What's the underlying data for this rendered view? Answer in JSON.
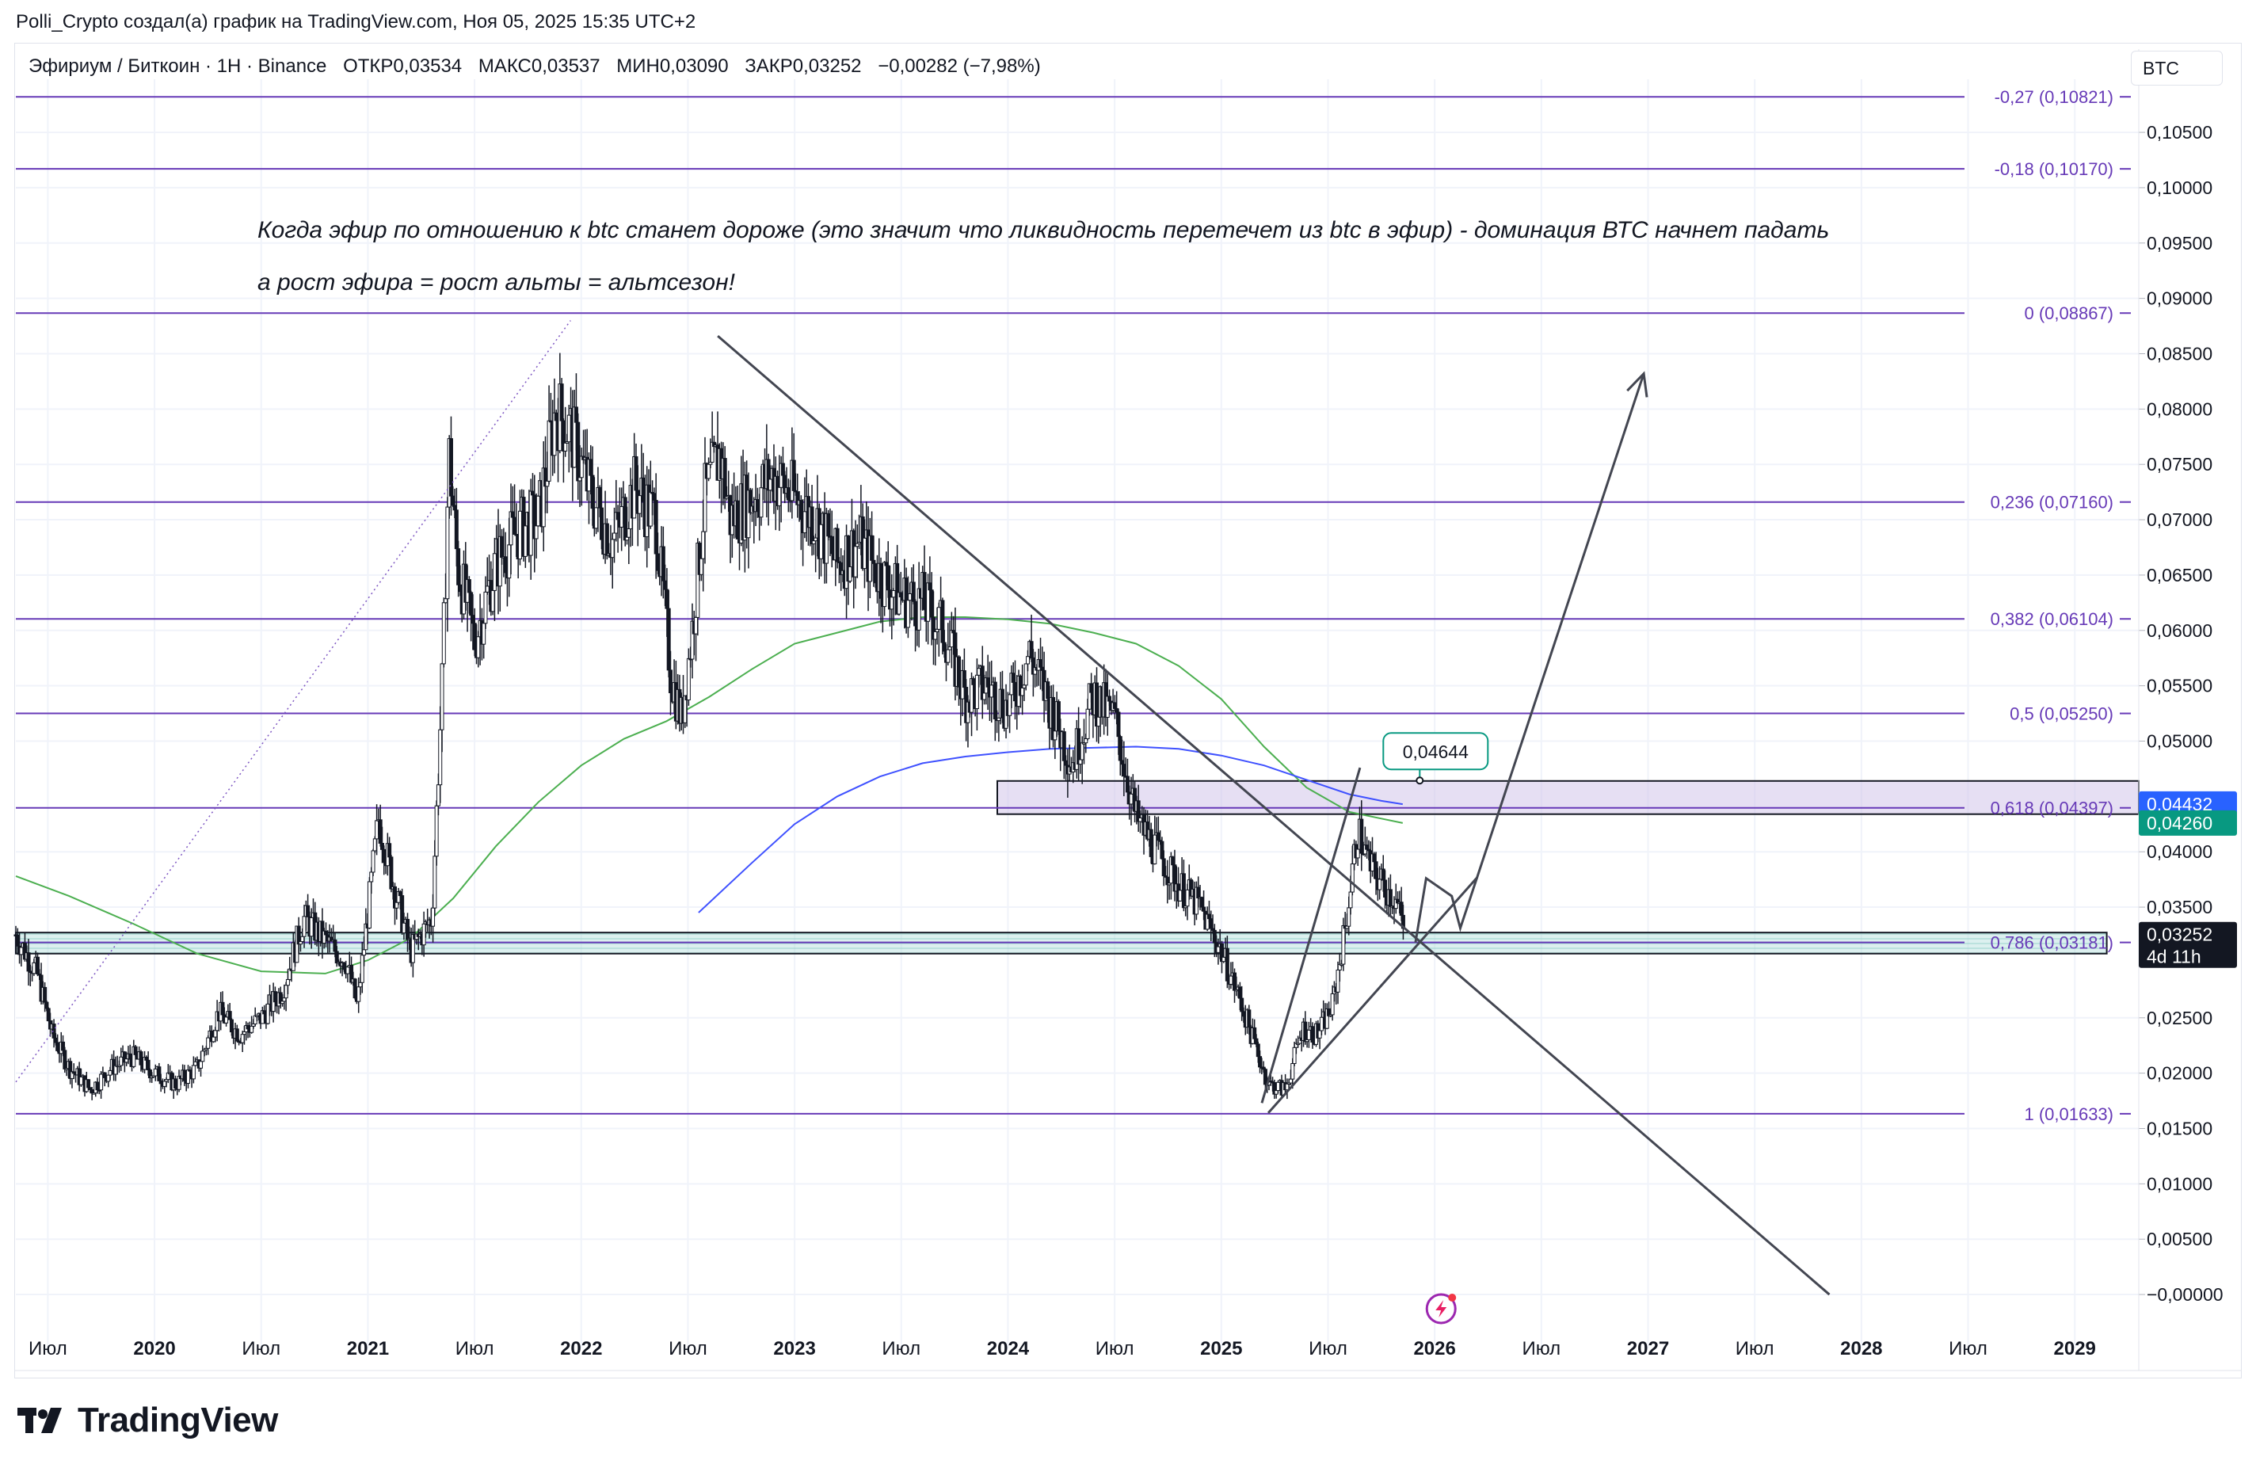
{
  "header": {
    "caption": "Polli_Crypto создал(а) график на TradingView.com, Ноя 05, 2025 15:35 UTC+2"
  },
  "symbol": {
    "name": "Эфириум / Биткоин · 1H · Binance",
    "open": "ОТКР0,03534",
    "high": "МАКС0,03537",
    "low": "МИН0,03090",
    "close": "ЗАКР0,03252",
    "change": "−0,00282 (−7,98%)"
  },
  "currency": "BTC",
  "logo_text": "TradingView",
  "colors": {
    "fib_line": "#673ab7",
    "trend_line": "#434651",
    "ma_green": "#4caf50",
    "ma_blue": "#3f51ff",
    "candle": "#131722",
    "zone_purple": "#d1c4e9",
    "zone_teal": "#b2dfdb",
    "badge_blue": "#2962ff",
    "badge_green": "#089981",
    "badge_dark": "#131722"
  },
  "chart_data": {
    "type": "candlestick",
    "ylim": [
      -0.002,
      0.1098
    ],
    "y_ticks": [
      {
        "value": 0.105,
        "label": "0,10500"
      },
      {
        "value": 0.1,
        "label": "0,10000"
      },
      {
        "value": 0.095,
        "label": "0,09500"
      },
      {
        "value": 0.09,
        "label": "0,09000"
      },
      {
        "value": 0.085,
        "label": "0,08500"
      },
      {
        "value": 0.08,
        "label": "0,08000"
      },
      {
        "value": 0.075,
        "label": "0,07500"
      },
      {
        "value": 0.07,
        "label": "0,07000"
      },
      {
        "value": 0.065,
        "label": "0,06500"
      },
      {
        "value": 0.06,
        "label": "0,06000"
      },
      {
        "value": 0.055,
        "label": "0,05500"
      },
      {
        "value": 0.05,
        "label": "0,05000"
      },
      {
        "value": 0.04,
        "label": "0,04000"
      },
      {
        "value": 0.035,
        "label": "0,03500"
      },
      {
        "value": 0.025,
        "label": "0,02500"
      },
      {
        "value": 0.02,
        "label": "0,02000"
      },
      {
        "value": 0.015,
        "label": "0,01500"
      },
      {
        "value": 0.01,
        "label": "0,01000"
      },
      {
        "value": 0.005,
        "label": "0,00500"
      },
      {
        "value": 0.0,
        "label": "−0,00000"
      }
    ],
    "x_ticks": [
      {
        "t": 2019.5,
        "label": "Июл",
        "bold": false
      },
      {
        "t": 2020.0,
        "label": "2020",
        "bold": true
      },
      {
        "t": 2020.5,
        "label": "Июл",
        "bold": false
      },
      {
        "t": 2021.0,
        "label": "2021",
        "bold": true
      },
      {
        "t": 2021.5,
        "label": "Июл",
        "bold": false
      },
      {
        "t": 2022.0,
        "label": "2022",
        "bold": true
      },
      {
        "t": 2022.5,
        "label": "Июл",
        "bold": false
      },
      {
        "t": 2023.0,
        "label": "2023",
        "bold": true
      },
      {
        "t": 2023.5,
        "label": "Июл",
        "bold": false
      },
      {
        "t": 2024.0,
        "label": "2024",
        "bold": true
      },
      {
        "t": 2024.5,
        "label": "Июл",
        "bold": false
      },
      {
        "t": 2025.0,
        "label": "2025",
        "bold": true
      },
      {
        "t": 2025.5,
        "label": "Июл",
        "bold": false
      },
      {
        "t": 2026.0,
        "label": "2026",
        "bold": true
      },
      {
        "t": 2026.5,
        "label": "Июл",
        "bold": false
      },
      {
        "t": 2027.0,
        "label": "2027",
        "bold": true
      },
      {
        "t": 2027.5,
        "label": "Июл",
        "bold": false
      },
      {
        "t": 2028.0,
        "label": "2028",
        "bold": true
      },
      {
        "t": 2028.5,
        "label": "Июл",
        "bold": false
      },
      {
        "t": 2029.0,
        "label": "2029",
        "bold": true
      }
    ],
    "fib_levels": [
      {
        "value": 0.10821,
        "label": "-0,27 (0,10821)"
      },
      {
        "value": 0.1017,
        "label": "-0,18 (0,10170)"
      },
      {
        "value": 0.08867,
        "label": "0 (0,08867)"
      },
      {
        "value": 0.0716,
        "label": "0,236 (0,07160)"
      },
      {
        "value": 0.06104,
        "label": "0,382 (0,06104)"
      },
      {
        "value": 0.0525,
        "label": "0,5 (0,05250)"
      },
      {
        "value": 0.04397,
        "label": "0,618 (0,04397)"
      },
      {
        "value": 0.03181,
        "label": "0,786 (0,03181)"
      },
      {
        "value": 0.01633,
        "label": "1 (0,01633)"
      }
    ],
    "price_badges": [
      {
        "value": 0.04432,
        "label": "0,04432",
        "color": "#2962ff"
      },
      {
        "value": 0.0426,
        "label": "0,04260",
        "color": "#089981"
      },
      {
        "value": 0.03252,
        "label": "0,03252",
        "sub": "4d 11h",
        "color": "#131722"
      }
    ],
    "annotation_lines": [
      "Когда эфир по отношению к btc станет дороже  (это значит что ликвидность перетечет из btc в эфир) - доминация ВТС начнет падать",
      "а рост эфира = рост альты = альтсезон!"
    ],
    "callout": {
      "label": "0,04644",
      "t": 2025.93,
      "value": 0.04644
    },
    "zones": [
      {
        "t0": 2023.95,
        "t1": 2029.3,
        "y0": 0.0434,
        "y1": 0.0464,
        "color": "purple"
      },
      {
        "t0": 2019.35,
        "t1": 2029.15,
        "y0": 0.0308,
        "y1": 0.0327,
        "color": "teal"
      }
    ],
    "trend_lines": [
      {
        "t0": 2022.64,
        "v0": 0.0866,
        "t1": 2027.85,
        "v1": 0.0
      },
      {
        "t0": 2025.22,
        "v0": 0.0164,
        "t1": 2026.2,
        "v1": 0.0377
      },
      {
        "t0": 2025.19,
        "v0": 0.0173,
        "t1": 2025.65,
        "v1": 0.0476
      }
    ],
    "forecast_path": [
      {
        "t": 2025.91,
        "v": 0.0318
      },
      {
        "t": 2025.96,
        "v": 0.0376
      },
      {
        "t": 2026.08,
        "v": 0.036
      },
      {
        "t": 2026.12,
        "v": 0.0331
      },
      {
        "t": 2026.98,
        "v": 0.0832
      }
    ],
    "dotted_line": {
      "t0": 2019.35,
      "v0": 0.0192,
      "t1": 2021.95,
      "v1": 0.088
    },
    "ma_green": [
      {
        "t": 2019.35,
        "v": 0.0378
      },
      {
        "t": 2019.6,
        "v": 0.036
      },
      {
        "t": 2019.9,
        "v": 0.0335
      },
      {
        "t": 2020.2,
        "v": 0.0308
      },
      {
        "t": 2020.5,
        "v": 0.0292
      },
      {
        "t": 2020.8,
        "v": 0.029
      },
      {
        "t": 2021.0,
        "v": 0.0302
      },
      {
        "t": 2021.2,
        "v": 0.0322
      },
      {
        "t": 2021.4,
        "v": 0.0358
      },
      {
        "t": 2021.6,
        "v": 0.0405
      },
      {
        "t": 2021.8,
        "v": 0.0445
      },
      {
        "t": 2022.0,
        "v": 0.0478
      },
      {
        "t": 2022.2,
        "v": 0.0502
      },
      {
        "t": 2022.4,
        "v": 0.0518
      },
      {
        "t": 2022.6,
        "v": 0.054
      },
      {
        "t": 2022.8,
        "v": 0.0565
      },
      {
        "t": 2023.0,
        "v": 0.0588
      },
      {
        "t": 2023.2,
        "v": 0.0598
      },
      {
        "t": 2023.4,
        "v": 0.0608
      },
      {
        "t": 2023.6,
        "v": 0.0612
      },
      {
        "t": 2023.8,
        "v": 0.0612
      },
      {
        "t": 2024.0,
        "v": 0.061
      },
      {
        "t": 2024.2,
        "v": 0.0606
      },
      {
        "t": 2024.4,
        "v": 0.0598
      },
      {
        "t": 2024.6,
        "v": 0.0588
      },
      {
        "t": 2024.8,
        "v": 0.0568
      },
      {
        "t": 2025.0,
        "v": 0.0538
      },
      {
        "t": 2025.2,
        "v": 0.0495
      },
      {
        "t": 2025.4,
        "v": 0.0458
      },
      {
        "t": 2025.6,
        "v": 0.0436
      },
      {
        "t": 2025.75,
        "v": 0.043
      },
      {
        "t": 2025.85,
        "v": 0.0426
      }
    ],
    "ma_blue": [
      {
        "t": 2022.55,
        "v": 0.0345
      },
      {
        "t": 2022.8,
        "v": 0.039
      },
      {
        "t": 2023.0,
        "v": 0.0425
      },
      {
        "t": 2023.2,
        "v": 0.045
      },
      {
        "t": 2023.4,
        "v": 0.0468
      },
      {
        "t": 2023.6,
        "v": 0.048
      },
      {
        "t": 2023.8,
        "v": 0.0486
      },
      {
        "t": 2024.0,
        "v": 0.049
      },
      {
        "t": 2024.2,
        "v": 0.0493
      },
      {
        "t": 2024.4,
        "v": 0.0494
      },
      {
        "t": 2024.6,
        "v": 0.0495
      },
      {
        "t": 2024.8,
        "v": 0.0493
      },
      {
        "t": 2025.0,
        "v": 0.0487
      },
      {
        "t": 2025.2,
        "v": 0.0478
      },
      {
        "t": 2025.4,
        "v": 0.0465
      },
      {
        "t": 2025.6,
        "v": 0.0452
      },
      {
        "t": 2025.75,
        "v": 0.0446
      },
      {
        "t": 2025.85,
        "v": 0.0443
      }
    ],
    "price_path": [
      {
        "t": 2019.35,
        "v": 0.0325
      },
      {
        "t": 2019.45,
        "v": 0.029
      },
      {
        "t": 2019.52,
        "v": 0.0235
      },
      {
        "t": 2019.6,
        "v": 0.0205
      },
      {
        "t": 2019.7,
        "v": 0.0185
      },
      {
        "t": 2019.8,
        "v": 0.0205
      },
      {
        "t": 2019.9,
        "v": 0.0215
      },
      {
        "t": 2020.0,
        "v": 0.02
      },
      {
        "t": 2020.1,
        "v": 0.019
      },
      {
        "t": 2020.2,
        "v": 0.0205
      },
      {
        "t": 2020.3,
        "v": 0.0255
      },
      {
        "t": 2020.4,
        "v": 0.0235
      },
      {
        "t": 2020.5,
        "v": 0.025
      },
      {
        "t": 2020.6,
        "v": 0.0275
      },
      {
        "t": 2020.7,
        "v": 0.034
      },
      {
        "t": 2020.8,
        "v": 0.032
      },
      {
        "t": 2020.9,
        "v": 0.03
      },
      {
        "t": 2020.95,
        "v": 0.026
      },
      {
        "t": 2021.05,
        "v": 0.043
      },
      {
        "t": 2021.12,
        "v": 0.037
      },
      {
        "t": 2021.2,
        "v": 0.031
      },
      {
        "t": 2021.3,
        "v": 0.034
      },
      {
        "t": 2021.35,
        "v": 0.056
      },
      {
        "t": 2021.38,
        "v": 0.076
      },
      {
        "t": 2021.42,
        "v": 0.066
      },
      {
        "t": 2021.5,
        "v": 0.059
      },
      {
        "t": 2021.6,
        "v": 0.066
      },
      {
        "t": 2021.7,
        "v": 0.069
      },
      {
        "t": 2021.8,
        "v": 0.07
      },
      {
        "t": 2021.88,
        "v": 0.08
      },
      {
        "t": 2021.95,
        "v": 0.078
      },
      {
        "t": 2022.05,
        "v": 0.072
      },
      {
        "t": 2022.15,
        "v": 0.068
      },
      {
        "t": 2022.25,
        "v": 0.073
      },
      {
        "t": 2022.35,
        "v": 0.07
      },
      {
        "t": 2022.42,
        "v": 0.056
      },
      {
        "t": 2022.47,
        "v": 0.052
      },
      {
        "t": 2022.52,
        "v": 0.06
      },
      {
        "t": 2022.58,
        "v": 0.072
      },
      {
        "t": 2022.65,
        "v": 0.076
      },
      {
        "t": 2022.7,
        "v": 0.07
      },
      {
        "t": 2022.8,
        "v": 0.072
      },
      {
        "t": 2022.9,
        "v": 0.074
      },
      {
        "t": 2023.0,
        "v": 0.072
      },
      {
        "t": 2023.1,
        "v": 0.07
      },
      {
        "t": 2023.2,
        "v": 0.066
      },
      {
        "t": 2023.3,
        "v": 0.068
      },
      {
        "t": 2023.4,
        "v": 0.065
      },
      {
        "t": 2023.5,
        "v": 0.063
      },
      {
        "t": 2023.6,
        "v": 0.0625
      },
      {
        "t": 2023.7,
        "v": 0.06
      },
      {
        "t": 2023.8,
        "v": 0.054
      },
      {
        "t": 2023.9,
        "v": 0.055
      },
      {
        "t": 2024.0,
        "v": 0.053
      },
      {
        "t": 2024.1,
        "v": 0.058
      },
      {
        "t": 2024.2,
        "v": 0.053
      },
      {
        "t": 2024.3,
        "v": 0.048
      },
      {
        "t": 2024.4,
        "v": 0.054
      },
      {
        "t": 2024.5,
        "v": 0.052
      },
      {
        "t": 2024.6,
        "v": 0.043
      },
      {
        "t": 2024.7,
        "v": 0.04
      },
      {
        "t": 2024.8,
        "v": 0.037
      },
      {
        "t": 2024.9,
        "v": 0.035
      },
      {
        "t": 2025.0,
        "v": 0.031
      },
      {
        "t": 2025.08,
        "v": 0.027
      },
      {
        "t": 2025.15,
        "v": 0.023
      },
      {
        "t": 2025.22,
        "v": 0.019
      },
      {
        "t": 2025.3,
        "v": 0.0185
      },
      {
        "t": 2025.38,
        "v": 0.024
      },
      {
        "t": 2025.45,
        "v": 0.0235
      },
      {
        "t": 2025.52,
        "v": 0.026
      },
      {
        "t": 2025.58,
        "v": 0.033
      },
      {
        "t": 2025.64,
        "v": 0.042
      },
      {
        "t": 2025.7,
        "v": 0.0385
      },
      {
        "t": 2025.76,
        "v": 0.037
      },
      {
        "t": 2025.82,
        "v": 0.0355
      },
      {
        "t": 2025.86,
        "v": 0.0325
      }
    ]
  }
}
